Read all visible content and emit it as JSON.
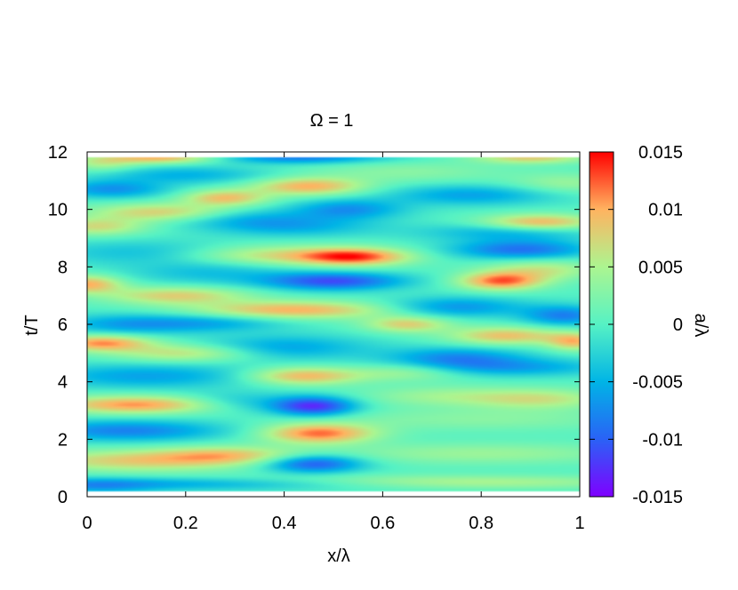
{
  "chart_data": {
    "type": "heatmap",
    "title": "Ω = 1",
    "xlabel": "x/λ",
    "ylabel": "t/T",
    "colorbar_label": "a/λ",
    "xlim": [
      0,
      1
    ],
    "ylim": [
      0,
      12
    ],
    "clim": [
      -0.015,
      0.015
    ],
    "x_ticks": [
      0,
      0.2,
      0.4,
      0.6,
      0.8,
      1
    ],
    "x_tick_labels": [
      "0",
      "0.2",
      "0.4",
      "0.6",
      "0.8",
      "1"
    ],
    "y_ticks": [
      0,
      2,
      4,
      6,
      8,
      10,
      12
    ],
    "y_tick_labels": [
      "0",
      "2",
      "4",
      "6",
      "8",
      "10",
      "12"
    ],
    "colorbar_ticks": [
      -0.015,
      -0.01,
      -0.005,
      0,
      0.005,
      0.01,
      0.015
    ],
    "colorbar_tick_labels": [
      "-0.015",
      "-0.01",
      "-0.005",
      "0",
      "0.005",
      "0.01",
      "0.015"
    ],
    "colormap": [
      "#7f00ff",
      "#2a62f6",
      "#00b4e6",
      "#56f2c4",
      "#acf590",
      "#ffb360",
      "#ff0000"
    ],
    "data_t_range": [
      0.2,
      11.8
    ],
    "features": [
      {
        "x": 0.25,
        "t": 0.45,
        "a": -0.0065,
        "sx": 0.32,
        "st": 0.16
      },
      {
        "x": 0.7,
        "t": 0.5,
        "a": 0.0065,
        "sx": 0.3,
        "st": 0.17
      },
      {
        "x": 0.02,
        "t": 0.35,
        "a": -0.004,
        "sx": 0.08,
        "st": 0.2
      },
      {
        "x": 0.1,
        "t": 1.25,
        "a": 0.008,
        "sx": 0.16,
        "st": 0.26
      },
      {
        "x": 0.28,
        "t": 1.45,
        "a": 0.007,
        "sx": 0.1,
        "st": 0.22
      },
      {
        "x": 0.46,
        "t": 1.15,
        "a": -0.011,
        "sx": 0.07,
        "st": 0.22
      },
      {
        "x": 0.8,
        "t": 1.5,
        "a": 0.004,
        "sx": 0.22,
        "st": 0.26
      },
      {
        "x": 0.08,
        "t": 2.3,
        "a": -0.008,
        "sx": 0.14,
        "st": 0.26
      },
      {
        "x": 0.47,
        "t": 2.2,
        "a": 0.012,
        "sx": 0.08,
        "st": 0.25
      },
      {
        "x": 0.8,
        "t": 2.7,
        "a": 0.003,
        "sx": 0.22,
        "st": 0.28
      },
      {
        "x": 0.1,
        "t": 3.2,
        "a": 0.011,
        "sx": 0.12,
        "st": 0.22
      },
      {
        "x": 0.46,
        "t": 3.15,
        "a": -0.013,
        "sx": 0.06,
        "st": 0.24
      },
      {
        "x": 0.3,
        "t": 3.3,
        "a": -0.004,
        "sx": 0.08,
        "st": 0.25
      },
      {
        "x": 0.72,
        "t": 3.5,
        "a": 0.004,
        "sx": 0.12,
        "st": 0.25
      },
      {
        "x": 0.92,
        "t": 3.4,
        "a": 0.006,
        "sx": 0.1,
        "st": 0.25
      },
      {
        "x": 0.12,
        "t": 4.2,
        "a": -0.006,
        "sx": 0.16,
        "st": 0.3
      },
      {
        "x": 0.44,
        "t": 4.2,
        "a": 0.01,
        "sx": 0.08,
        "st": 0.22
      },
      {
        "x": 0.65,
        "t": 4.35,
        "a": 0.005,
        "sx": 0.08,
        "st": 0.22
      },
      {
        "x": 0.85,
        "t": 4.5,
        "a": -0.006,
        "sx": 0.15,
        "st": 0.22
      },
      {
        "x": 0.03,
        "t": 5.35,
        "a": 0.011,
        "sx": 0.07,
        "st": 0.2
      },
      {
        "x": 0.2,
        "t": 5.0,
        "a": 0.007,
        "sx": 0.1,
        "st": 0.22
      },
      {
        "x": 0.4,
        "t": 5.2,
        "a": -0.006,
        "sx": 0.12,
        "st": 0.3
      },
      {
        "x": 0.75,
        "t": 4.85,
        "a": -0.007,
        "sx": 0.1,
        "st": 0.25
      },
      {
        "x": 0.85,
        "t": 5.6,
        "a": 0.009,
        "sx": 0.08,
        "st": 0.22
      },
      {
        "x": 0.99,
        "t": 5.4,
        "a": 0.009,
        "sx": 0.04,
        "st": 0.22
      },
      {
        "x": 0.08,
        "t": 6.0,
        "a": -0.006,
        "sx": 0.1,
        "st": 0.25
      },
      {
        "x": 0.26,
        "t": 6.05,
        "a": -0.005,
        "sx": 0.1,
        "st": 0.22
      },
      {
        "x": 0.42,
        "t": 6.5,
        "a": 0.01,
        "sx": 0.14,
        "st": 0.22
      },
      {
        "x": 0.65,
        "t": 6.0,
        "a": 0.008,
        "sx": 0.06,
        "st": 0.2
      },
      {
        "x": 0.75,
        "t": 6.6,
        "a": -0.007,
        "sx": 0.1,
        "st": 0.25
      },
      {
        "x": 0.97,
        "t": 6.3,
        "a": -0.008,
        "sx": 0.06,
        "st": 0.25
      },
      {
        "x": 0.0,
        "t": 7.4,
        "a": 0.01,
        "sx": 0.05,
        "st": 0.22
      },
      {
        "x": 0.18,
        "t": 7.0,
        "a": 0.008,
        "sx": 0.1,
        "st": 0.22
      },
      {
        "x": 0.25,
        "t": 7.8,
        "a": -0.004,
        "sx": 0.12,
        "st": 0.3
      },
      {
        "x": 0.5,
        "t": 7.5,
        "a": -0.011,
        "sx": 0.1,
        "st": 0.22
      },
      {
        "x": 0.84,
        "t": 7.5,
        "a": 0.012,
        "sx": 0.06,
        "st": 0.22
      },
      {
        "x": 0.92,
        "t": 7.9,
        "a": 0.006,
        "sx": 0.08,
        "st": 0.25
      },
      {
        "x": 0.12,
        "t": 8.5,
        "a": -0.004,
        "sx": 0.15,
        "st": 0.3
      },
      {
        "x": 0.36,
        "t": 8.4,
        "a": 0.007,
        "sx": 0.12,
        "st": 0.25
      },
      {
        "x": 0.54,
        "t": 8.35,
        "a": 0.013,
        "sx": 0.08,
        "st": 0.22
      },
      {
        "x": 0.88,
        "t": 8.6,
        "a": -0.009,
        "sx": 0.1,
        "st": 0.24
      },
      {
        "x": 0.02,
        "t": 9.4,
        "a": 0.007,
        "sx": 0.07,
        "st": 0.22
      },
      {
        "x": 0.15,
        "t": 9.9,
        "a": 0.008,
        "sx": 0.1,
        "st": 0.22
      },
      {
        "x": 0.32,
        "t": 9.7,
        "a": -0.004,
        "sx": 0.1,
        "st": 0.25
      },
      {
        "x": 0.42,
        "t": 9.4,
        "a": -0.005,
        "sx": 0.12,
        "st": 0.25
      },
      {
        "x": 0.85,
        "t": 9.2,
        "a": -0.005,
        "sx": 0.12,
        "st": 0.22
      },
      {
        "x": 0.92,
        "t": 9.55,
        "a": 0.01,
        "sx": 0.08,
        "st": 0.2
      },
      {
        "x": 0.53,
        "t": 10.0,
        "a": -0.007,
        "sx": 0.08,
        "st": 0.25
      },
      {
        "x": 0.05,
        "t": 10.7,
        "a": -0.007,
        "sx": 0.08,
        "st": 0.22
      },
      {
        "x": 0.28,
        "t": 10.4,
        "a": 0.009,
        "sx": 0.06,
        "st": 0.2
      },
      {
        "x": 0.45,
        "t": 10.8,
        "a": 0.01,
        "sx": 0.08,
        "st": 0.22
      },
      {
        "x": 0.78,
        "t": 10.5,
        "a": -0.006,
        "sx": 0.12,
        "st": 0.25
      },
      {
        "x": 0.97,
        "t": 10.9,
        "a": 0.004,
        "sx": 0.08,
        "st": 0.25
      },
      {
        "x": 0.2,
        "t": 11.2,
        "a": -0.005,
        "sx": 0.12,
        "st": 0.22
      },
      {
        "x": 0.15,
        "t": 11.8,
        "a": 0.01,
        "sx": 0.08,
        "st": 0.15
      },
      {
        "x": 0.43,
        "t": 11.8,
        "a": -0.008,
        "sx": 0.12,
        "st": 0.15
      },
      {
        "x": 0.9,
        "t": 11.8,
        "a": 0.008,
        "sx": 0.08,
        "st": 0.15
      },
      {
        "x": 0.03,
        "t": 11.6,
        "a": 0.005,
        "sx": 0.05,
        "st": 0.2
      },
      {
        "x": 0.65,
        "t": 11.3,
        "a": 0.003,
        "sx": 0.14,
        "st": 0.25
      }
    ]
  }
}
